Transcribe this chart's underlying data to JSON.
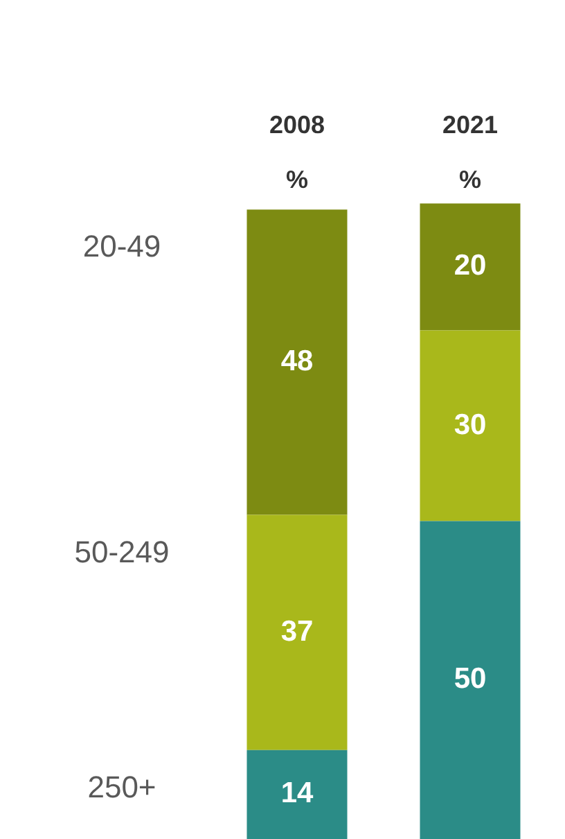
{
  "chart_data": {
    "type": "bar",
    "stacked": true,
    "categories": [
      "2008",
      "2021"
    ],
    "series": [
      {
        "name": "250+",
        "color": "#2b8c87",
        "values": [
          14,
          50
        ]
      },
      {
        "name": "50-249",
        "color": "#a9b81b",
        "values": [
          37,
          30
        ]
      },
      {
        "name": "20-49",
        "color": "#7d8b12",
        "values": [
          48,
          20
        ]
      }
    ],
    "ylim": [
      0,
      100
    ],
    "tick_labels": "x",
    "grid": false,
    "legend": false,
    "data_labels": true,
    "annotations": [
      "%",
      "%"
    ]
  }
}
